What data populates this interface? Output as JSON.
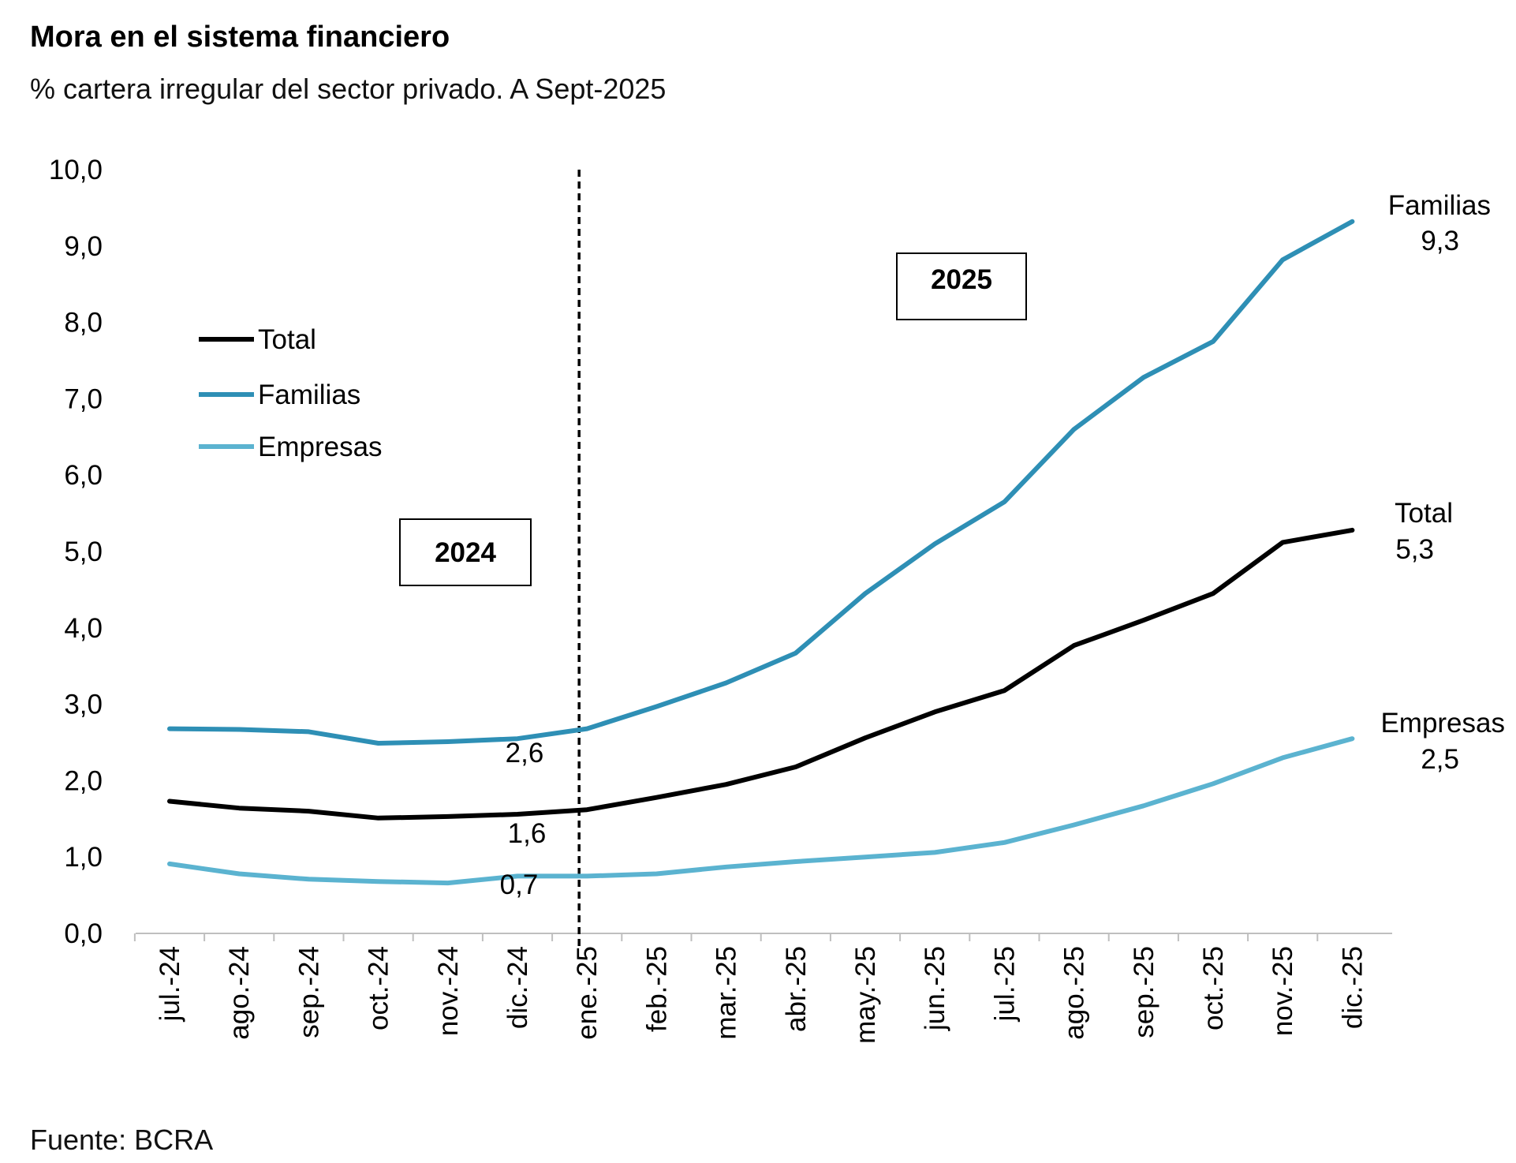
{
  "colors": {
    "total": "#000000",
    "familias": "#2E8FB5",
    "empresas": "#5BB3D0"
  },
  "chart_data": {
    "type": "line",
    "title": "Mora en el sistema financiero",
    "subtitle": "% cartera irregular del sector privado. A Sept-2025",
    "source": "Fuente: BCRA",
    "xlabel": "",
    "ylabel": "",
    "ylim": [
      0,
      10
    ],
    "yticks": [
      "0,0",
      "1,0",
      "2,0",
      "3,0",
      "4,0",
      "5,0",
      "6,0",
      "7,0",
      "8,0",
      "9,0",
      "10,0"
    ],
    "categories": [
      "jul.-24",
      "ago.-24",
      "sep.-24",
      "oct.-24",
      "nov.-24",
      "dic.-24",
      "ene.-25",
      "feb.-25",
      "mar.-25",
      "abr.-25",
      "may.-25",
      "jun.-25",
      "jul.-25",
      "ago.-25",
      "sep.-25",
      "oct.-25",
      "nov.-25",
      "dic.-25"
    ],
    "series": [
      {
        "name": "Total",
        "color_key": "total",
        "values": [
          1.73,
          1.64,
          1.6,
          1.51,
          1.53,
          1.56,
          1.62,
          1.78,
          1.95,
          2.18,
          2.56,
          2.9,
          3.18,
          3.77,
          4.1,
          4.45,
          5.12,
          5.28
        ]
      },
      {
        "name": "Familias",
        "color_key": "familias",
        "values": [
          2.68,
          2.67,
          2.64,
          2.49,
          2.51,
          2.55,
          2.68,
          2.97,
          3.28,
          3.67,
          4.45,
          5.1,
          5.65,
          6.6,
          7.28,
          7.75,
          8.82,
          9.32
        ]
      },
      {
        "name": "Empresas",
        "color_key": "empresas",
        "values": [
          0.91,
          0.78,
          0.71,
          0.68,
          0.66,
          0.75,
          0.75,
          0.78,
          0.87,
          0.94,
          1.0,
          1.06,
          1.19,
          1.42,
          1.67,
          1.96,
          2.3,
          2.55
        ]
      }
    ],
    "legend": {
      "placement": "top-left",
      "items": [
        "Total",
        "Familias",
        "Empresas"
      ]
    },
    "divider": {
      "category": "ene.-25",
      "style": "dashed"
    },
    "period_boxes": [
      "2024",
      "2025"
    ],
    "end_labels": {
      "familias": {
        "name": "Familias",
        "value": "9,3"
      },
      "total": {
        "name": "Total",
        "value": "5,3"
      },
      "empresas": {
        "name": "Empresas",
        "value": "2,5"
      }
    },
    "point_labels": {
      "familias": "2,6",
      "total": "1,6",
      "empresas": "0,7"
    }
  }
}
